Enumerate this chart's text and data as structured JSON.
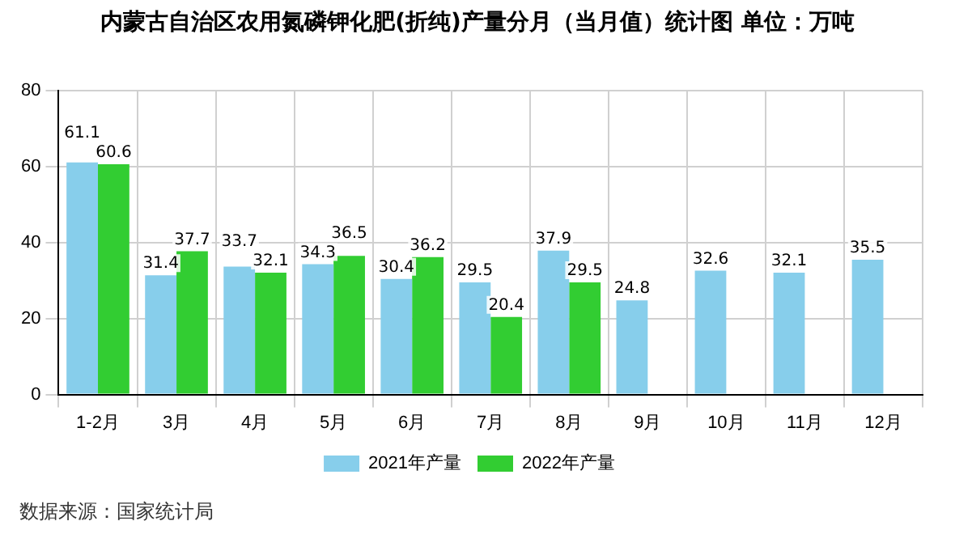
{
  "chart_data": {
    "type": "bar",
    "title": "内蒙古自治区农用氮磷钾化肥(折纯)产量分月（当月值）统计图 单位：万吨",
    "categories": [
      "1-2月",
      "3月",
      "4月",
      "5月",
      "6月",
      "7月",
      "8月",
      "9月",
      "10月",
      "11月",
      "12月"
    ],
    "series": [
      {
        "name": "2021年产量",
        "color": "#87ceeb",
        "values": [
          61.1,
          31.4,
          33.7,
          34.3,
          30.4,
          29.5,
          37.9,
          24.8,
          32.6,
          32.1,
          35.5
        ]
      },
      {
        "name": "2022年产量",
        "color": "#32cd32",
        "values": [
          60.6,
          37.7,
          32.1,
          36.5,
          36.2,
          20.4,
          29.5,
          null,
          null,
          null,
          null
        ]
      }
    ],
    "ylim": [
      0,
      80
    ],
    "yticks": [
      0,
      20,
      40,
      60,
      80
    ],
    "grid": true,
    "legend": "bottom",
    "data_labels": true,
    "annotations": [
      "数据来源：国家统计局"
    ]
  }
}
